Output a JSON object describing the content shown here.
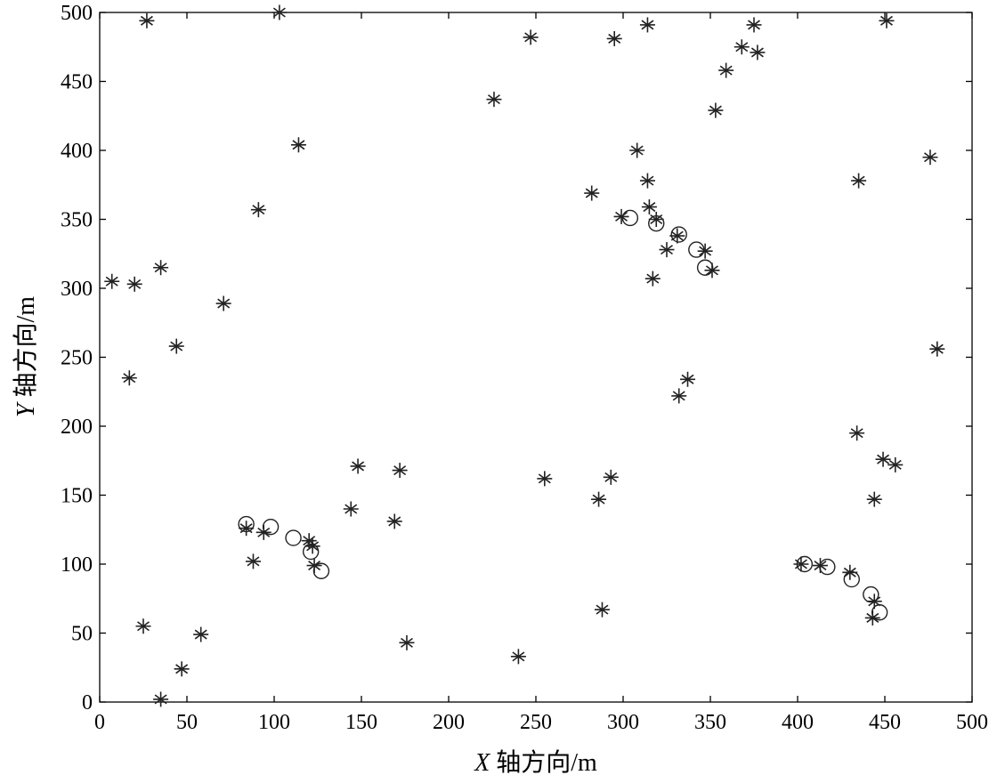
{
  "chart_data": {
    "type": "scatter",
    "title": "",
    "xlabel": {
      "var": "X",
      "rest": " 轴方向/m"
    },
    "ylabel": {
      "var": "Y",
      "rest": " 轴方向/m"
    },
    "xlim": [
      0,
      500
    ],
    "ylim": [
      0,
      500
    ],
    "xticks": [
      0,
      50,
      100,
      150,
      200,
      250,
      300,
      350,
      400,
      450,
      500
    ],
    "yticks": [
      0,
      50,
      100,
      150,
      200,
      250,
      300,
      350,
      400,
      450,
      500
    ],
    "grid": false,
    "legend": "none",
    "series": [
      {
        "marker": "asterisk",
        "color": "#222222",
        "points": [
          [
            27,
            494
          ],
          [
            103,
            500
          ],
          [
            247,
            482
          ],
          [
            295,
            481
          ],
          [
            314,
            491
          ],
          [
            375,
            491
          ],
          [
            451,
            494
          ],
          [
            226,
            437
          ],
          [
            368,
            475
          ],
          [
            359,
            458
          ],
          [
            377,
            471
          ],
          [
            353,
            429
          ],
          [
            114,
            404
          ],
          [
            308,
            400
          ],
          [
            476,
            395
          ],
          [
            435,
            378
          ],
          [
            314,
            378
          ],
          [
            91,
            357
          ],
          [
            282,
            369
          ],
          [
            299,
            352
          ],
          [
            315,
            359
          ],
          [
            319,
            350
          ],
          [
            331,
            338
          ],
          [
            325,
            328
          ],
          [
            347,
            327
          ],
          [
            351,
            313
          ],
          [
            317,
            307
          ],
          [
            7,
            305
          ],
          [
            20,
            303
          ],
          [
            35,
            315
          ],
          [
            71,
            289
          ],
          [
            44,
            258
          ],
          [
            17,
            235
          ],
          [
            480,
            256
          ],
          [
            337,
            234
          ],
          [
            332,
            222
          ],
          [
            434,
            195
          ],
          [
            148,
            171
          ],
          [
            172,
            168
          ],
          [
            255,
            162
          ],
          [
            293,
            163
          ],
          [
            286,
            147
          ],
          [
            144,
            140
          ],
          [
            169,
            131
          ],
          [
            449,
            176
          ],
          [
            456,
            172
          ],
          [
            444,
            147
          ],
          [
            84,
            126
          ],
          [
            94,
            123
          ],
          [
            120,
            117
          ],
          [
            122,
            113
          ],
          [
            88,
            102
          ],
          [
            123,
            99
          ],
          [
            402,
            100
          ],
          [
            413,
            99
          ],
          [
            430,
            94
          ],
          [
            444,
            73
          ],
          [
            443,
            61
          ],
          [
            25,
            55
          ],
          [
            58,
            49
          ],
          [
            288,
            67
          ],
          [
            47,
            24
          ],
          [
            176,
            43
          ],
          [
            240,
            33
          ],
          [
            35,
            2
          ]
        ]
      },
      {
        "marker": "circle",
        "color": "#222222",
        "points": [
          [
            84,
            129
          ],
          [
            98,
            127
          ],
          [
            111,
            119
          ],
          [
            121,
            109
          ],
          [
            127,
            95
          ],
          [
            304,
            351
          ],
          [
            319,
            347
          ],
          [
            332,
            339
          ],
          [
            342,
            328
          ],
          [
            347,
            315
          ],
          [
            404,
            100
          ],
          [
            417,
            98
          ],
          [
            431,
            89
          ],
          [
            442,
            78
          ],
          [
            447,
            65
          ]
        ]
      }
    ]
  }
}
